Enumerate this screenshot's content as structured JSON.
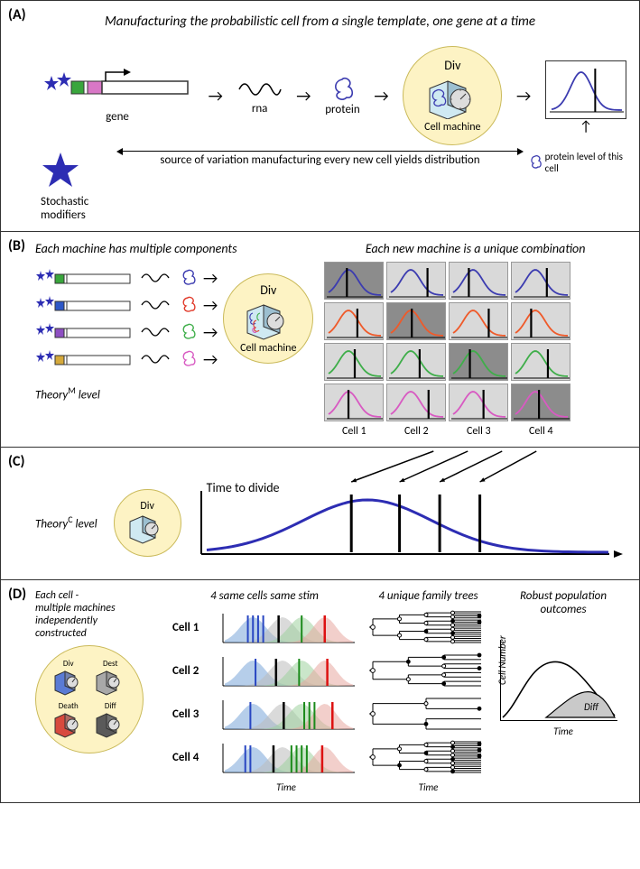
{
  "panelA": {
    "label": "(A)",
    "title": "Manufacturing the probabilistic cell from a single template, one gene at a time",
    "steps": {
      "gene": "gene",
      "rna": "rna",
      "protein": "protein"
    },
    "cell_machine": {
      "title": "Div",
      "label": "Cell machine"
    },
    "stochastic": "Stochastic\nmodifiers",
    "source_line": "source of variation manufacturing every new cell  yields distribution",
    "protein_level": "protein level of this cell",
    "dist": {
      "color": "#3c3cb0",
      "mean": 0.42,
      "sd": 0.15,
      "marker_x": 0.62
    },
    "gene_colors": {
      "star": "#2d2db3",
      "seg1": "#39a63c",
      "seg2": "#d877c6"
    }
  },
  "panelB": {
    "label": "(B)",
    "left_title": "Each machine has multiple components",
    "right_title": "Each new machine is a unique combination",
    "cell_machine": {
      "title": "Div",
      "label": "Cell machine"
    },
    "theory": "Theory",
    "theory_sup": "M",
    "theory_suffix": " level",
    "genes": [
      {
        "seg": "#39a63c",
        "protein": "#3c3cb0"
      },
      {
        "seg": "#2d57c7",
        "protein": "#e13a2a"
      },
      {
        "seg": "#8e4fc2",
        "protein": "#3fae4a"
      },
      {
        "seg": "#d5a93b",
        "protein": "#d85ac2"
      }
    ],
    "grid": {
      "cols": [
        "Cell 1",
        "Cell 2",
        "Cell 3",
        "Cell 4"
      ],
      "row_colors": [
        "#3c3cb0",
        "#ef5a2a",
        "#3fae4a",
        "#d85ac2"
      ],
      "markers": [
        [
          0.35,
          0.7,
          0.3,
          0.6
        ],
        [
          0.55,
          0.4,
          0.68,
          0.3
        ],
        [
          0.5,
          0.55,
          0.32,
          0.62
        ],
        [
          0.38,
          0.72,
          0.58,
          0.45
        ]
      ],
      "shade_scheme": [
        [
          "dark",
          "light",
          "light",
          "light"
        ],
        [
          "light",
          "dark",
          "light",
          "light"
        ],
        [
          "light",
          "light",
          "dark",
          "light"
        ],
        [
          "light",
          "light",
          "light",
          "dark"
        ]
      ]
    }
  },
  "panelC": {
    "label": "(C)",
    "theory": "Theory",
    "theory_sup": "C",
    "theory_suffix": " level",
    "cell_machine_title": "Div",
    "ttd_label": "Time to divide",
    "dist": {
      "color": "#2d2db3",
      "markers": [
        0.36,
        0.48,
        0.58,
        0.68
      ]
    }
  },
  "panelD": {
    "label": "(D)",
    "side_title": "Each cell -\nmultiple machines\nindependently\nconstructed",
    "col2_title": "4 same cells same stim",
    "col3_title": "4 unique family trees",
    "col4_title": "Robust population\noutcomes",
    "machines": [
      {
        "name": "Div",
        "color": "#5a7bd4"
      },
      {
        "name": "Dest",
        "color": "#a8a8a8"
      },
      {
        "name": "Death",
        "color": "#d84a3e"
      },
      {
        "name": "Diff",
        "color": "#5a5a5a"
      }
    ],
    "cells": [
      "Cell 1",
      "Cell 2",
      "Cell 3",
      "Cell 4"
    ],
    "triple_colors": {
      "div": "#7aa6d9",
      "dest": "#9fd19f",
      "death": "#e8a8a0",
      "diff": "#bcbcbc"
    },
    "triple_markers": [
      {
        "div": [
          0.18,
          0.22,
          0.26,
          0.3
        ],
        "diff": 0.42,
        "dest": [
          0.6
        ],
        "death": 0.78
      },
      {
        "div": [
          0.24
        ],
        "diff": 0.4,
        "dest": [
          0.58
        ],
        "death": 0.8
      },
      {
        "div": [
          0.2
        ],
        "diff": 0.46,
        "dest": [
          0.62,
          0.66,
          0.7
        ],
        "death": 0.84
      },
      {
        "div": [
          0.16,
          0.2
        ],
        "diff": 0.38,
        "dest": [
          0.52,
          0.56,
          0.6,
          0.64
        ],
        "death": 0.76
      }
    ],
    "trees": [
      {
        "depth": 4,
        "deaths": [
          2,
          5
        ],
        "pattern": "full"
      },
      {
        "depth": 3,
        "deaths": [
          0,
          3
        ],
        "pattern": "sparse"
      },
      {
        "depth": 2,
        "deaths": [
          1
        ],
        "pattern": "short"
      },
      {
        "depth": 4,
        "deaths": [
          1,
          4,
          7
        ],
        "pattern": "dense"
      }
    ],
    "time_label": "Time",
    "pop": {
      "y_label": "Cell Number",
      "x_label": "Time",
      "diff_label": "Diff"
    }
  }
}
